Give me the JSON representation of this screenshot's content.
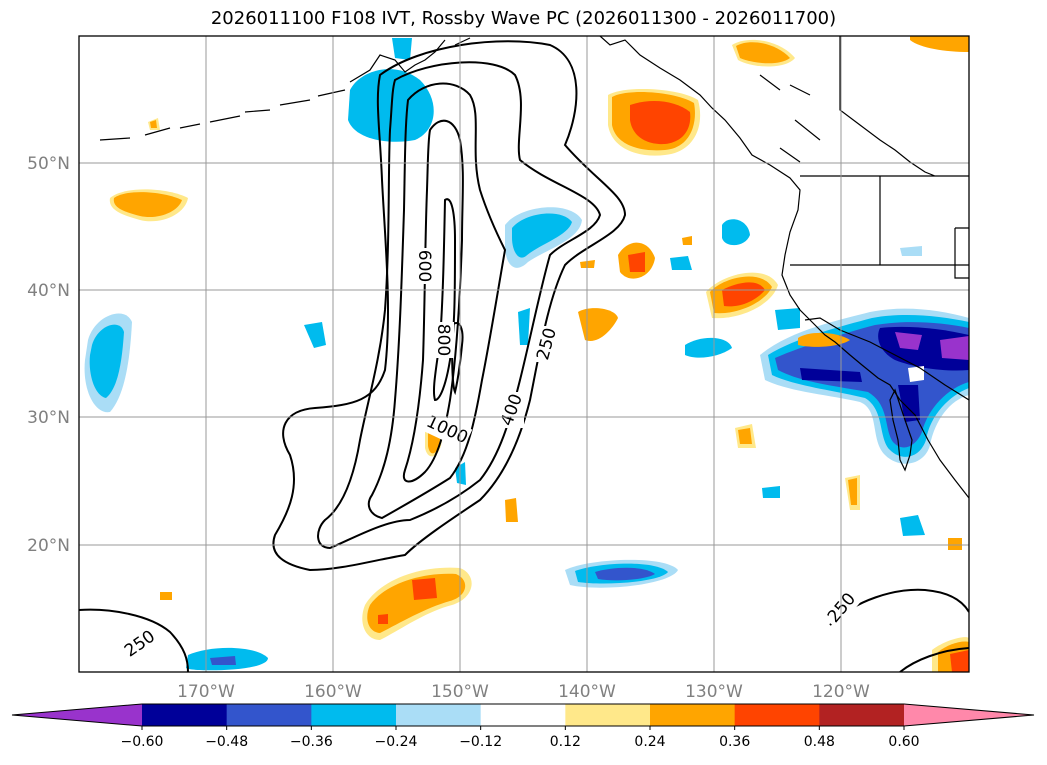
{
  "title": "2026011100 F108 IVT, Rossby Wave PC (2026011300 - 2026011700)",
  "map": {
    "lon_labels": [
      "170°W",
      "160°W",
      "150°W",
      "140°W",
      "130°W",
      "120°W"
    ],
    "lat_labels": [
      "50°N",
      "40°N",
      "30°N",
      "20°N"
    ],
    "contour_labels": [
      "600",
      "800",
      "1000",
      "400",
      "250",
      "250",
      "250"
    ]
  },
  "colorbar": {
    "colors": [
      "#9933cc",
      "#000099",
      "#3355cc",
      "#00bbee",
      "#aaddf6",
      "#ffffff",
      "#ffe88a",
      "#ffa500",
      "#ff4400",
      "#b22222",
      "#ff88aa"
    ],
    "tick_labels": [
      "−0.60",
      "−0.48",
      "−0.36",
      "−0.24",
      "−0.12",
      "0.12",
      "0.24",
      "0.36",
      "0.48",
      "0.60"
    ]
  }
}
